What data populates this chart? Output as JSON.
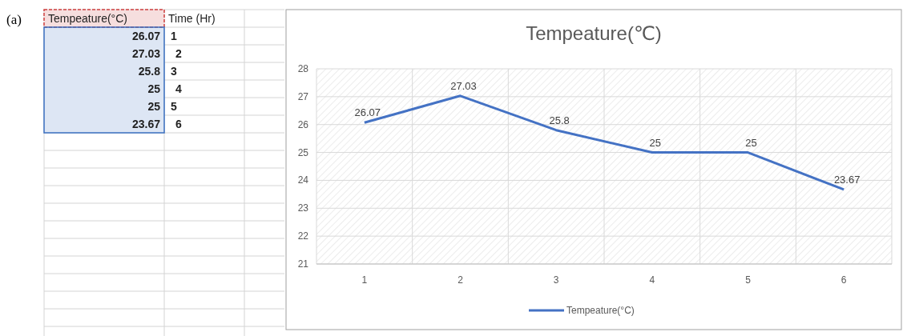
{
  "chart_data": [
    {
      "type": "other",
      "xlabel": "Time (Hr)",
      "ylabel": "Tempeature(°C)",
      "values": [
        26.07,
        27.03,
        25.8,
        25,
        25,
        23.67
      ],
      "data_labels": true,
      "annotations": [
        "(a)",
        "1",
        "2",
        "3",
        "4",
        "5",
        "6"
      ]
    },
    {
      "type": "line",
      "title": "Tempeature(℃)",
      "categories": [
        "1",
        "2",
        "3",
        "4",
        "5",
        "6"
      ],
      "series": [
        {
          "name": "Tempeature(°C)",
          "color": "#4472c4",
          "values": [
            26.07,
            27.03,
            25.8,
            25,
            25,
            23.67
          ]
        }
      ],
      "ylim": [
        21,
        28
      ],
      "yticks": [
        21,
        22,
        23,
        24,
        25,
        26,
        27,
        28
      ],
      "grid": true,
      "legend": "bottom",
      "data_labels": true,
      "marker": "none",
      "line_style": "solid"
    }
  ]
}
